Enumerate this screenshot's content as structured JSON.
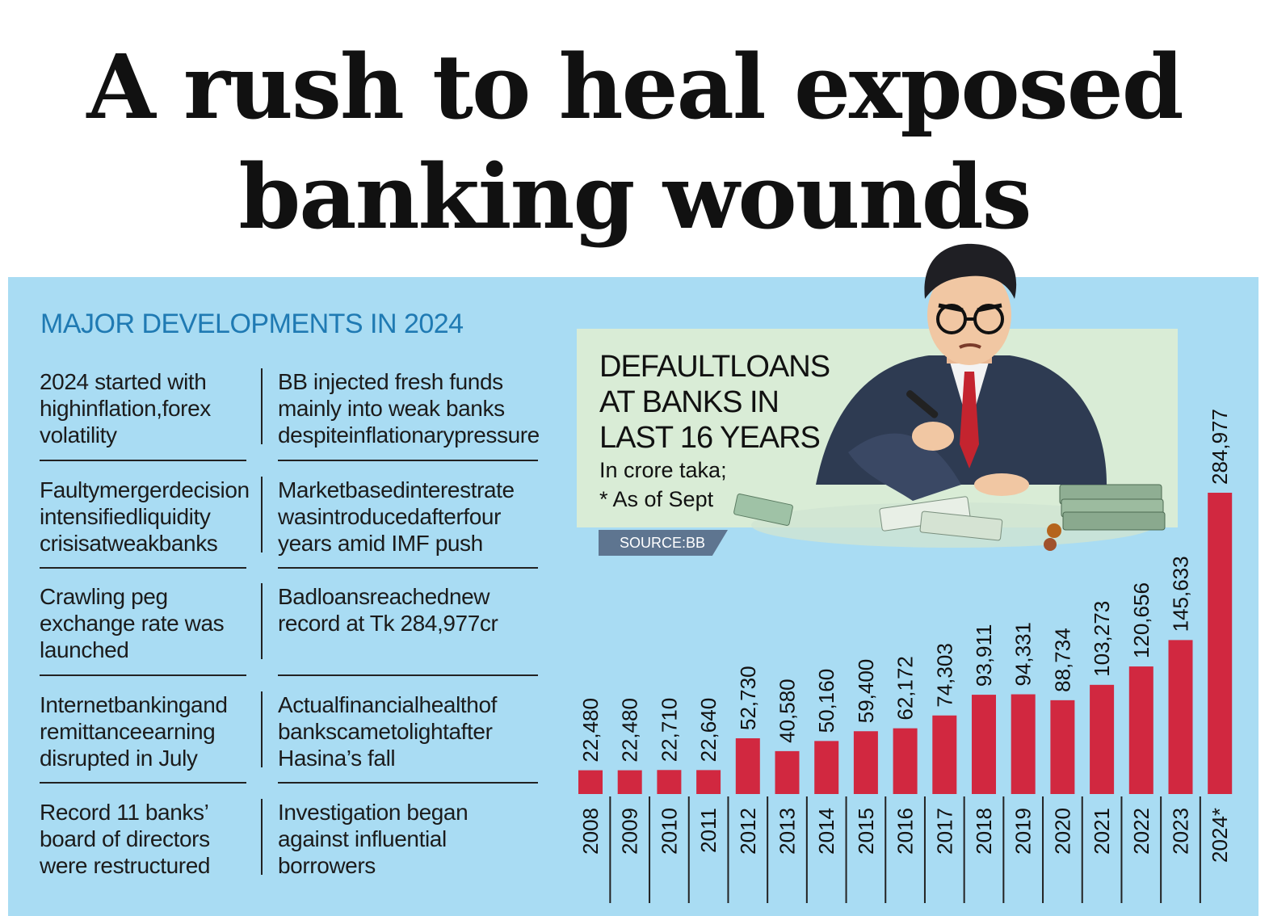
{
  "headline": {
    "line1": "A rush to heal exposed",
    "line2": "banking wounds"
  },
  "developments": {
    "title": "MAJOR DEVELOPMENTS IN 2024",
    "rows": [
      [
        "2024 started with highinflation,forex volatility",
        "BB injected fresh funds mainly into weak banks despiteinflationarypressure"
      ],
      [
        "Faultymergerdecision intensifiedliquidity crisisatweakbanks",
        "Marketbasedinterestrate wasintroducedafterfour years amid IMF push"
      ],
      [
        "Crawling peg exchange rate was launched",
        "Badloansreachednew record at Tk 284,977cr"
      ],
      [
        "Internetbankingand remittanceearning disrupted in July",
        "Actualfinancialhealthof bankscametolightafter Hasina’s fall"
      ],
      [
        "Record 11 banks’ board of directors were restructured",
        "Investigation began against influential borrowers"
      ]
    ]
  },
  "chart_box": {
    "title_lines": [
      "DEFAULTLOANS",
      "AT BANKS IN",
      "LAST 16 YEARS"
    ],
    "subtitle_lines": [
      "In crore taka;",
      "* As of Sept"
    ],
    "source": "SOURCE:BB"
  },
  "chart_data": {
    "type": "bar",
    "title": "DEFAULTLOANS AT BANKS IN LAST 16 YEARS",
    "unit": "In crore taka",
    "note": "* As of Sept",
    "categories": [
      "2008",
      "2009",
      "2010",
      "2011",
      "2012",
      "2013",
      "2014",
      "2015",
      "2016",
      "2017",
      "2018",
      "2019",
      "2020",
      "2021",
      "2022",
      "2023",
      "2024*"
    ],
    "values": [
      22480,
      22480,
      22710,
      22640,
      52730,
      40580,
      50160,
      59400,
      62172,
      74303,
      93911,
      94331,
      88734,
      103273,
      120656,
      145633,
      284977
    ],
    "data_labels": [
      "22,480",
      "22,480",
      "22,710",
      "22,640",
      "52,730",
      "40,580",
      "50,160",
      "59,400",
      "62,172",
      "74,303",
      "93,911",
      "94,331",
      "88,734",
      "103,273",
      "120,656",
      "145,633",
      "284,977"
    ],
    "ylim": [
      0,
      284977
    ],
    "bar_color": "#d12840",
    "grid": false
  },
  "colors": {
    "panel_bg": "#a9dcf3",
    "heading_blue": "#1f7ab3",
    "bar_red": "#d12840",
    "source_tag": "#5e7590"
  },
  "illustration": {
    "icon": "businessman-with-money-icon"
  }
}
